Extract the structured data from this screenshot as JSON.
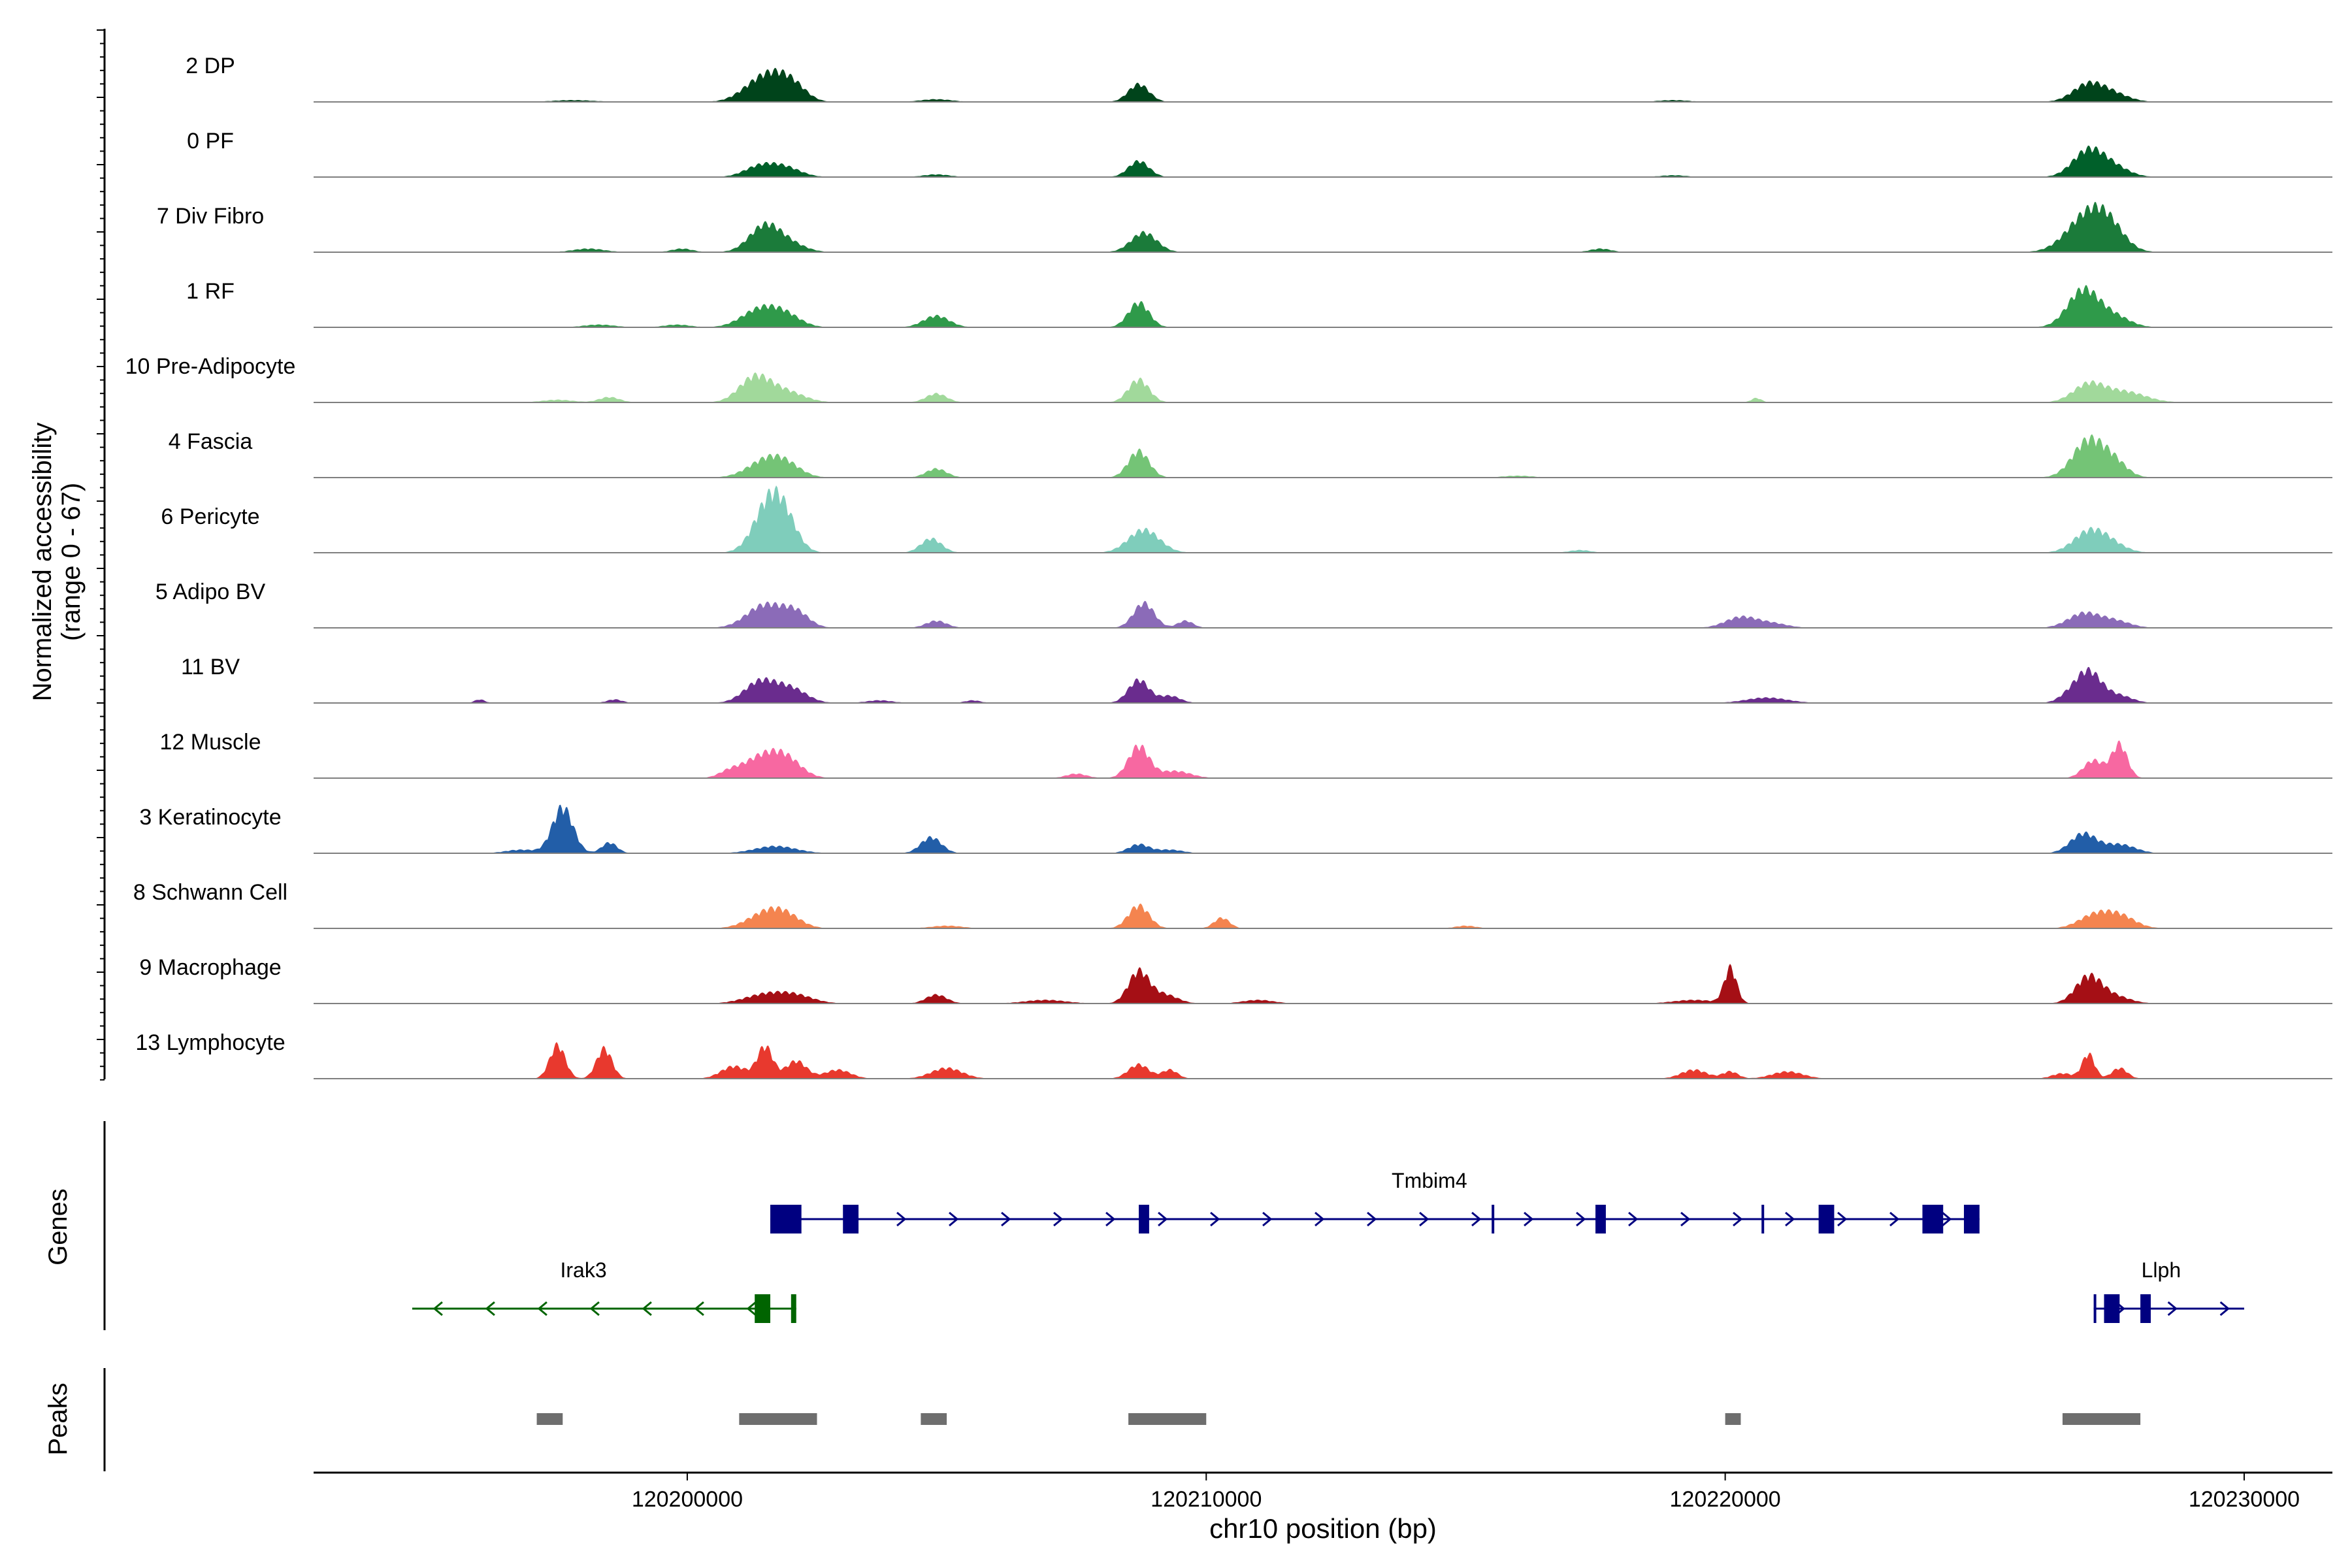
{
  "chart_data": {
    "type": "area",
    "ylabel_line1": "Normalized accessibility",
    "ylabel_line2": "(range 0 - 67)",
    "xlabel": "chr10 position (bp)",
    "xlim": [
      120192800,
      120231700
    ],
    "xticks": [
      {
        "value": 120200000,
        "label": "120200000"
      },
      {
        "value": 120210000,
        "label": "120210000"
      },
      {
        "value": 120220000,
        "label": "120220000"
      },
      {
        "value": 120230000,
        "label": "120230000"
      }
    ],
    "genes_label": "Genes",
    "peaks_label": "Peaks",
    "tracks": [
      {
        "name": "2 DP",
        "color": "#00441b",
        "peaks": [
          [
            120201400,
            22,
            350
          ],
          [
            120201800,
            18,
            300
          ],
          [
            120202100,
            10,
            250
          ],
          [
            120208700,
            20,
            200
          ],
          [
            120227000,
            20,
            300
          ],
          [
            120227500,
            8,
            300
          ],
          [
            120197800,
            2,
            400
          ],
          [
            120204800,
            3,
            300
          ],
          [
            120219000,
            2,
            300
          ]
        ]
      },
      {
        "name": "0 PF",
        "color": "#00602a",
        "peaks": [
          [
            120201400,
            12,
            300
          ],
          [
            120201900,
            10,
            300
          ],
          [
            120208700,
            18,
            200
          ],
          [
            120227000,
            30,
            300
          ],
          [
            120227500,
            10,
            300
          ],
          [
            120204800,
            3,
            250
          ],
          [
            120219000,
            2,
            250
          ]
        ]
      },
      {
        "name": "7 Div Fibro",
        "color": "#1b7b3a",
        "peaks": [
          [
            120201500,
            30,
            300
          ],
          [
            120202000,
            8,
            300
          ],
          [
            120208800,
            22,
            250
          ],
          [
            120227000,
            42,
            400
          ],
          [
            120227400,
            18,
            300
          ],
          [
            120198100,
            4,
            300
          ],
          [
            120199900,
            4,
            200
          ],
          [
            120217600,
            4,
            200
          ]
        ]
      },
      {
        "name": "1 RF",
        "color": "#2f9a4a",
        "peaks": [
          [
            120201400,
            20,
            350
          ],
          [
            120201900,
            12,
            300
          ],
          [
            120204800,
            13,
            250
          ],
          [
            120208700,
            28,
            200
          ],
          [
            120226900,
            42,
            300
          ],
          [
            120227500,
            12,
            300
          ],
          [
            120198300,
            3,
            300
          ],
          [
            120199800,
            3,
            250
          ]
        ]
      },
      {
        "name": "10 Pre-Adipocyte",
        "color": "#a1d99b",
        "peaks": [
          [
            120201300,
            28,
            300
          ],
          [
            120201900,
            12,
            350
          ],
          [
            120204800,
            10,
            200
          ],
          [
            120208700,
            26,
            200
          ],
          [
            120227000,
            20,
            300
          ],
          [
            120227700,
            12,
            400
          ],
          [
            120198500,
            6,
            200
          ],
          [
            120220600,
            5,
            100
          ],
          [
            120197500,
            3,
            300
          ]
        ]
      },
      {
        "name": "4 Fascia",
        "color": "#74c476",
        "peaks": [
          [
            120201500,
            18,
            350
          ],
          [
            120201900,
            12,
            300
          ],
          [
            120204800,
            10,
            200
          ],
          [
            120208700,
            30,
            200
          ],
          [
            120227000,
            42,
            300
          ],
          [
            120227500,
            16,
            250
          ],
          [
            120216000,
            2,
            300
          ]
        ]
      },
      {
        "name": "6 Pericyte",
        "color": "#7fcdbb",
        "peaks": [
          [
            120201600,
            58,
            300
          ],
          [
            120201900,
            20,
            250
          ],
          [
            120204700,
            16,
            200
          ],
          [
            120208800,
            26,
            300
          ],
          [
            120227000,
            22,
            300
          ],
          [
            120227400,
            10,
            300
          ],
          [
            120217200,
            3,
            200
          ]
        ]
      },
      {
        "name": "5 Adipo BV",
        "color": "#8b6bb8",
        "peaks": [
          [
            120201500,
            26,
            350
          ],
          [
            120202100,
            16,
            250
          ],
          [
            120204800,
            8,
            200
          ],
          [
            120208800,
            28,
            200
          ],
          [
            120209600,
            8,
            150
          ],
          [
            120220300,
            12,
            300
          ],
          [
            120220900,
            5,
            300
          ],
          [
            120226900,
            16,
            300
          ],
          [
            120227500,
            8,
            300
          ]
        ]
      },
      {
        "name": "11 BV",
        "color": "#6a2c8e",
        "peaks": [
          [
            120201400,
            24,
            300
          ],
          [
            120202000,
            16,
            300
          ],
          [
            120208700,
            26,
            200
          ],
          [
            120209300,
            8,
            200
          ],
          [
            120227000,
            36,
            250
          ],
          [
            120227600,
            8,
            250
          ],
          [
            120220800,
            6,
            400
          ],
          [
            120226600,
            6,
            200
          ],
          [
            120196000,
            4,
            100
          ],
          [
            120198600,
            4,
            150
          ],
          [
            120203700,
            3,
            250
          ],
          [
            120205500,
            3,
            150
          ]
        ]
      },
      {
        "name": "12 Muscle",
        "color": "#f768a1",
        "peaks": [
          [
            120201400,
            22,
            350
          ],
          [
            120201900,
            20,
            300
          ],
          [
            120208700,
            36,
            200
          ],
          [
            120209400,
            8,
            300
          ],
          [
            120227100,
            20,
            200
          ],
          [
            120227600,
            38,
            150
          ],
          [
            120200800,
            6,
            200
          ],
          [
            120207500,
            5,
            200
          ]
        ]
      },
      {
        "name": "3 Keratinocyte",
        "color": "#225ea8",
        "peaks": [
          [
            120197600,
            52,
            200
          ],
          [
            120198500,
            12,
            150
          ],
          [
            120201700,
            8,
            400
          ],
          [
            120204700,
            18,
            200
          ],
          [
            120208700,
            10,
            200
          ],
          [
            120209300,
            4,
            250
          ],
          [
            120226900,
            22,
            250
          ],
          [
            120227600,
            10,
            300
          ],
          [
            120196800,
            4,
            300
          ]
        ]
      },
      {
        "name": "8 Schwann Cell",
        "color": "#f4844f",
        "peaks": [
          [
            120201500,
            16,
            350
          ],
          [
            120201900,
            12,
            300
          ],
          [
            120208700,
            26,
            200
          ],
          [
            120210300,
            12,
            150
          ],
          [
            120227100,
            14,
            300
          ],
          [
            120227600,
            14,
            300
          ],
          [
            120205000,
            3,
            300
          ],
          [
            120215000,
            3,
            200
          ]
        ]
      },
      {
        "name": "9 Macrophage",
        "color": "#a50f15",
        "peaks": [
          [
            120201500,
            10,
            400
          ],
          [
            120202100,
            8,
            350
          ],
          [
            120204800,
            10,
            200
          ],
          [
            120208700,
            36,
            200
          ],
          [
            120209200,
            10,
            250
          ],
          [
            120220100,
            40,
            120
          ],
          [
            120227000,
            30,
            250
          ],
          [
            120227500,
            8,
            300
          ],
          [
            120206900,
            4,
            400
          ],
          [
            120219400,
            4,
            400
          ],
          [
            120211000,
            4,
            300
          ]
        ]
      },
      {
        "name": "13 Lymphocyte",
        "color": "#e8392e",
        "peaks": [
          [
            120197500,
            38,
            150
          ],
          [
            120198400,
            34,
            150
          ],
          [
            120201500,
            36,
            150
          ],
          [
            120202100,
            20,
            200
          ],
          [
            120200900,
            14,
            250
          ],
          [
            120205000,
            12,
            300
          ],
          [
            120208700,
            16,
            200
          ],
          [
            120209300,
            10,
            150
          ],
          [
            120227000,
            28,
            120
          ],
          [
            120227600,
            12,
            150
          ],
          [
            120219400,
            10,
            250
          ],
          [
            120221200,
            8,
            300
          ],
          [
            120226500,
            6,
            200
          ],
          [
            120220100,
            8,
            150
          ],
          [
            120202900,
            10,
            250
          ]
        ]
      }
    ],
    "genes": [
      {
        "name": "Tmbim4",
        "color": "#000080",
        "strand": "+",
        "start": 120201600,
        "end": 120224900,
        "row": 0,
        "label_pos": 120214300,
        "exons": [
          [
            120201600,
            120202200
          ],
          [
            120203000,
            120203300
          ],
          [
            120208700,
            120208900
          ],
          [
            120215500,
            120215550
          ],
          [
            120217500,
            120217700
          ],
          [
            120220700,
            120220750
          ],
          [
            120221800,
            120222100
          ],
          [
            120223800,
            120224200
          ],
          [
            120224600,
            120224900
          ]
        ]
      },
      {
        "name": "Irak3",
        "color": "#006400",
        "strand": "-",
        "start": 120194700,
        "end": 120202100,
        "row": 1,
        "label_pos": 120198000,
        "exons": [
          [
            120201300,
            120201600
          ],
          [
            120202000,
            120202100
          ]
        ]
      },
      {
        "name": "Llph",
        "color": "#000080",
        "strand": "+",
        "start": 120227100,
        "end": 120230000,
        "row": 1,
        "label_pos": 120228400,
        "exons": [
          [
            120227100,
            120227150
          ],
          [
            120227300,
            120227600
          ],
          [
            120228000,
            120228200
          ]
        ]
      }
    ],
    "peak_regions": [
      [
        120197100,
        120197600
      ],
      [
        120201000,
        120202500
      ],
      [
        120204500,
        120205000
      ],
      [
        120208500,
        120210000
      ],
      [
        120220000,
        120220300
      ],
      [
        120226500,
        120228000
      ]
    ]
  }
}
